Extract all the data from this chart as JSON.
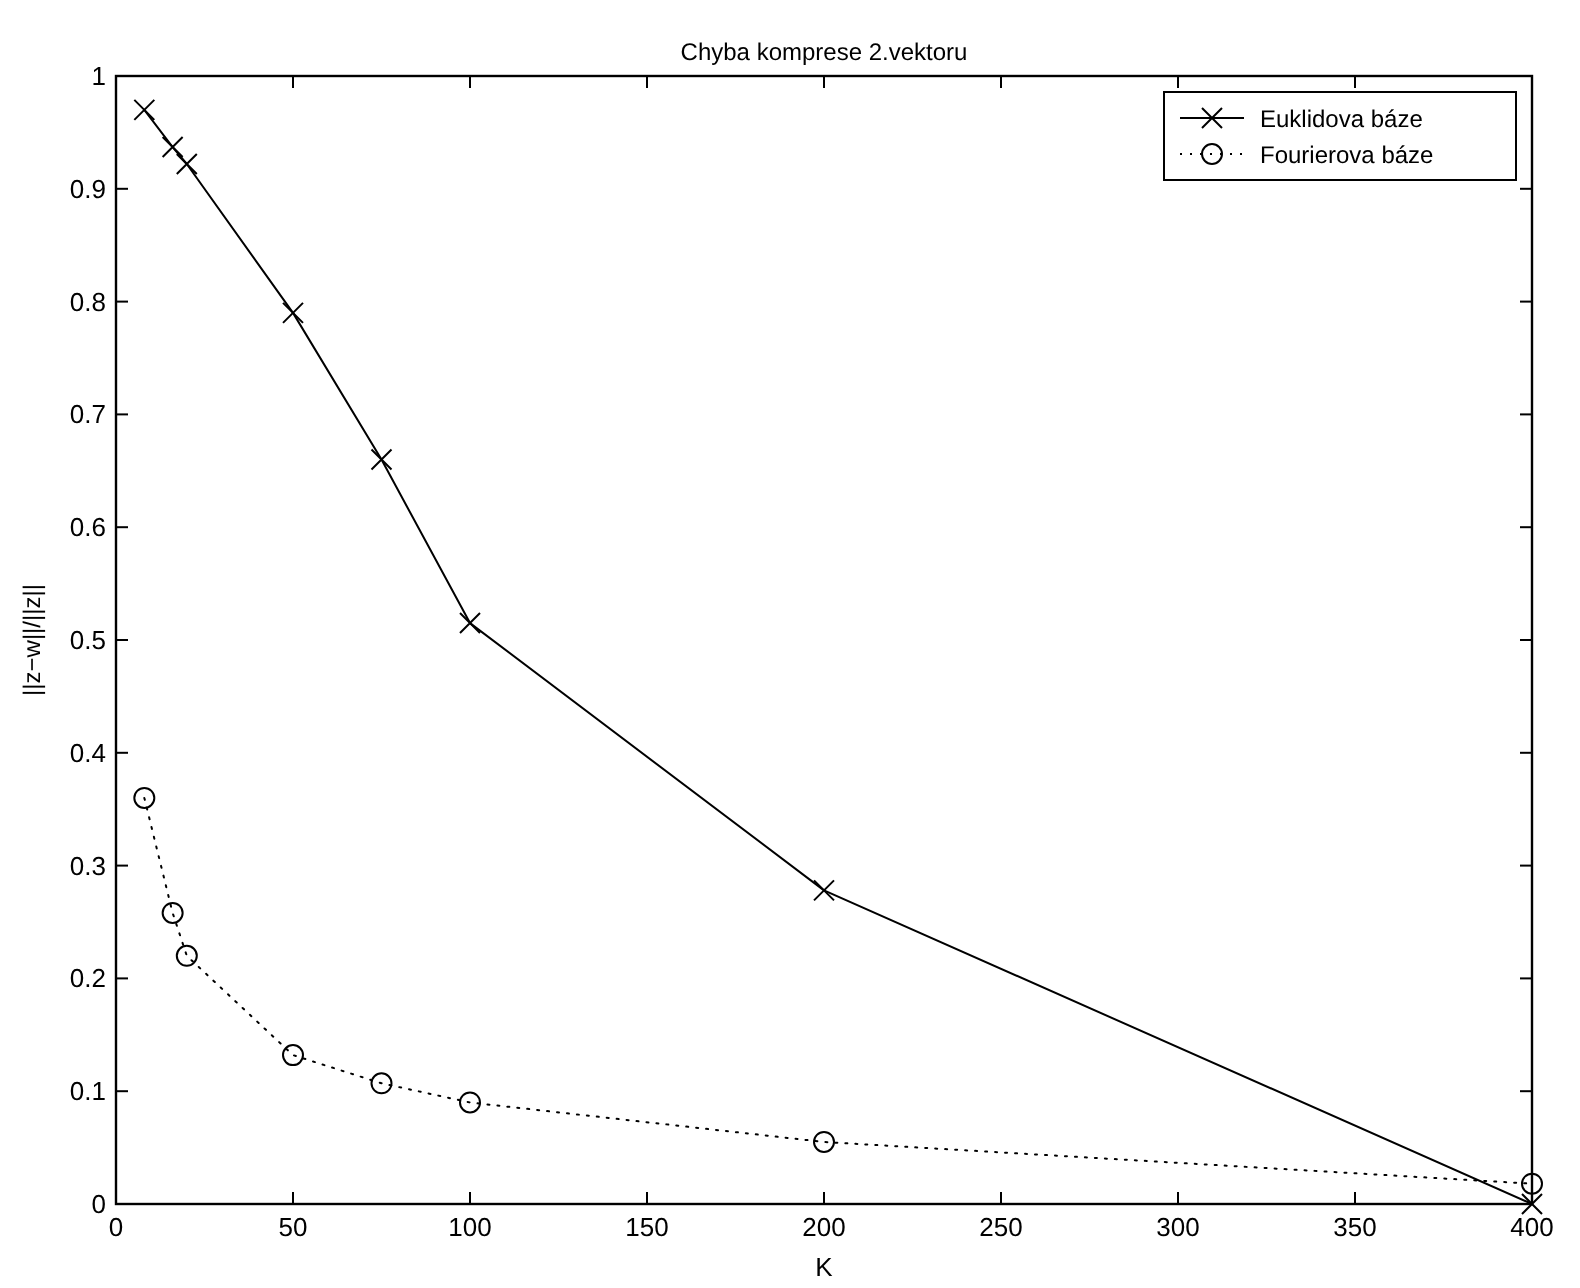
{
  "chart_data": {
    "type": "line",
    "title": "Chyba komprese 2.vektoru",
    "xlabel": "K",
    "ylabel": "||z−w||/||z||",
    "x": [
      8,
      16,
      20,
      50,
      75,
      100,
      200,
      400
    ],
    "series": [
      {
        "name": "Euklidova báze",
        "color": "#000000",
        "marker": "cross",
        "line_style": "solid",
        "values": [
          0.97,
          0.937,
          0.922,
          0.79,
          0.66,
          0.515,
          0.278,
          0.0
        ]
      },
      {
        "name": "Fourierova báze",
        "color": "#000000",
        "marker": "circle",
        "line_style": "dotted",
        "values": [
          0.36,
          0.258,
          0.22,
          0.132,
          0.107,
          0.09,
          0.055,
          0.018
        ]
      }
    ],
    "xlim": [
      0,
      400
    ],
    "xticks": [
      0,
      50,
      100,
      150,
      200,
      250,
      300,
      350,
      400
    ],
    "ylim": [
      0,
      1
    ],
    "yticks": [
      0,
      0.1,
      0.2,
      0.3,
      0.4,
      0.5,
      0.6,
      0.7,
      0.8,
      0.9,
      1
    ],
    "grid": false,
    "legend": "top right"
  }
}
